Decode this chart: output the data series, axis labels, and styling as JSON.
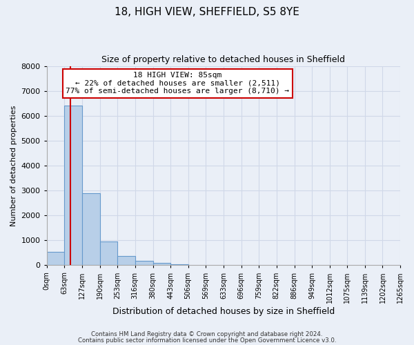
{
  "title": "18, HIGH VIEW, SHEFFIELD, S5 8YE",
  "subtitle": "Size of property relative to detached houses in Sheffield",
  "xlabel": "Distribution of detached houses by size in Sheffield",
  "ylabel": "Number of detached properties",
  "bar_values": [
    550,
    6400,
    2900,
    950,
    380,
    180,
    100,
    50,
    0,
    0,
    0,
    0,
    0,
    0,
    0,
    0,
    0,
    0,
    0,
    0
  ],
  "bin_edges": [
    0,
    63,
    127,
    190,
    253,
    316,
    380,
    443,
    506,
    569,
    633,
    696,
    759,
    822,
    886,
    949,
    1012,
    1075,
    1139,
    1202,
    1265
  ],
  "bar_color": "#b8cfe8",
  "bar_edgecolor": "#6699cc",
  "property_size": 85,
  "annotation_line1": "18 HIGH VIEW: 85sqm",
  "annotation_line2": "← 22% of detached houses are smaller (2,511)",
  "annotation_line3": "77% of semi-detached houses are larger (8,710) →",
  "annotation_box_color": "#ffffff",
  "annotation_box_edgecolor": "#cc0000",
  "vline_color": "#cc0000",
  "ylim": [
    0,
    8000
  ],
  "yticks": [
    0,
    1000,
    2000,
    3000,
    4000,
    5000,
    6000,
    7000,
    8000
  ],
  "grid_color": "#d0d8e8",
  "bg_color": "#eaeff7",
  "footer_line1": "Contains HM Land Registry data © Crown copyright and database right 2024.",
  "footer_line2": "Contains public sector information licensed under the Open Government Licence v3.0."
}
